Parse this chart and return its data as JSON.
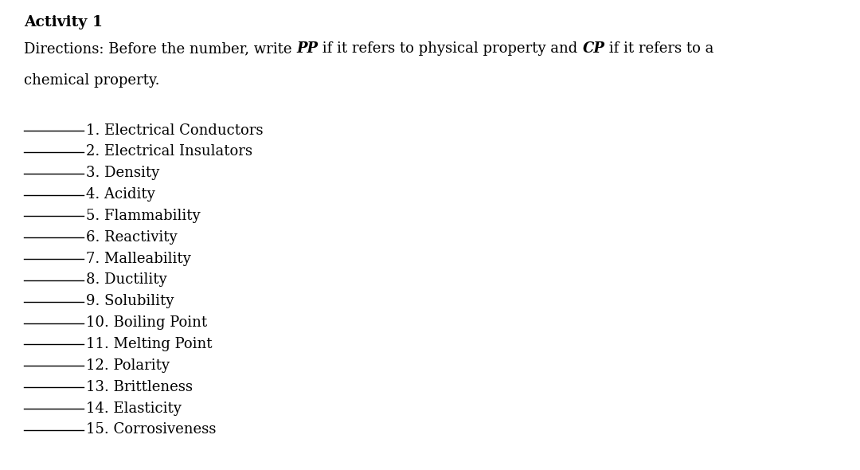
{
  "title": "Activity 1",
  "items": [
    "1. Electrical Conductors",
    "2. Electrical Insulators",
    "3. Density",
    "4. Acidity",
    "5. Flammability",
    "6. Reactivity",
    "7. Malleability",
    "8. Ductility",
    "9. Solubility",
    "10. Boiling Point",
    "11. Melting Point",
    "12. Polarity",
    "13. Brittleness",
    "14. Elasticity",
    "15. Corrosiveness"
  ],
  "background_color": "#ffffff",
  "text_color": "#000000",
  "title_fontsize": 13.5,
  "body_fontsize": 13.0,
  "item_fontsize": 13.0,
  "line_color": "#000000"
}
